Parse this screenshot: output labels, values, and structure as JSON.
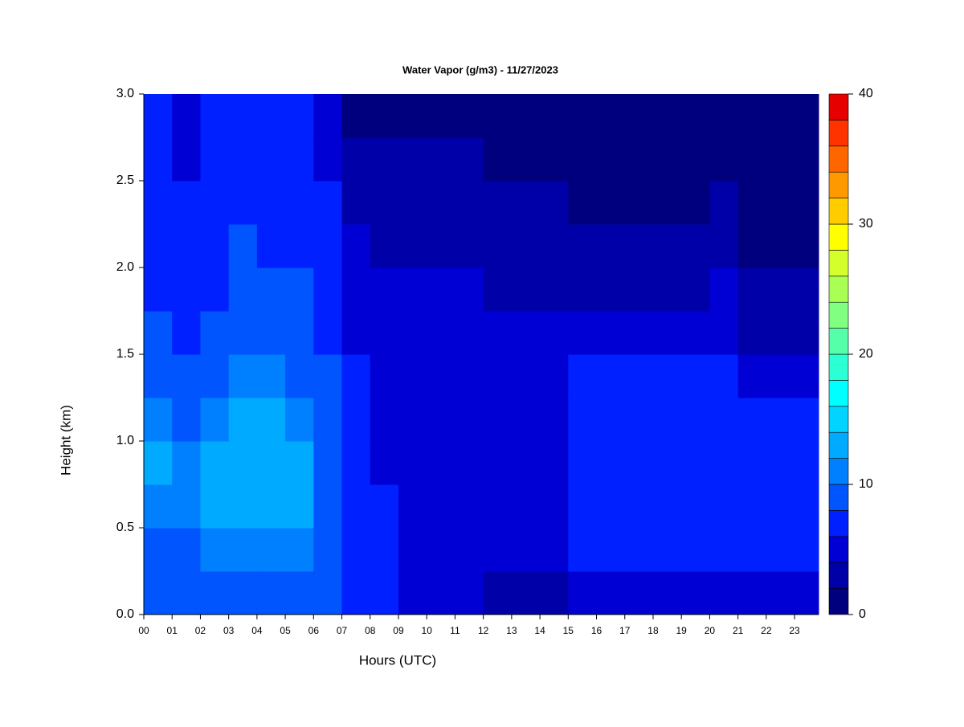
{
  "chart_data": {
    "type": "heatmap",
    "title": "Water Vapor (g/m3) - 11/27/2023",
    "xlabel": "Hours (UTC)",
    "ylabel": "Height (km)",
    "xlim": [
      0,
      23.85
    ],
    "ylim": [
      0,
      3
    ],
    "xticks": [
      {
        "value": 0,
        "label": "00"
      },
      {
        "value": 1,
        "label": "01"
      },
      {
        "value": 2,
        "label": "02"
      },
      {
        "value": 3,
        "label": "03"
      },
      {
        "value": 4,
        "label": "04"
      },
      {
        "value": 5,
        "label": "05"
      },
      {
        "value": 6,
        "label": "06"
      },
      {
        "value": 7,
        "label": "07"
      },
      {
        "value": 8,
        "label": "08"
      },
      {
        "value": 9,
        "label": "09"
      },
      10,
      11,
      12,
      13,
      14,
      15,
      16,
      17,
      18,
      19,
      20,
      21,
      22,
      23
    ],
    "yticks": [
      {
        "value": 0,
        "label": "0.0"
      },
      0.5,
      {
        "value": 1,
        "label": "1.0"
      },
      1.5,
      {
        "value": 2,
        "label": "2.0"
      },
      2.5,
      {
        "value": 3,
        "label": "3.0"
      }
    ],
    "x": [
      0,
      1,
      2,
      3,
      4,
      5,
      6,
      7,
      8,
      9,
      10,
      11,
      12,
      13,
      14,
      15,
      16,
      17,
      18,
      19,
      20,
      21,
      22,
      23
    ],
    "y": [
      0,
      0.25,
      0.5,
      0.75,
      1,
      1.25,
      1.5,
      1.75,
      2,
      2.25,
      2.5,
      2.75
    ],
    "z": [
      [
        9,
        9,
        11,
        12,
        10,
        9,
        8,
        7,
        7,
        6,
        6,
        6
      ],
      [
        9,
        9,
        10,
        10,
        9,
        8,
        7,
        7,
        6,
        6,
        5,
        5
      ],
      [
        9,
        10,
        12,
        12,
        11,
        9,
        8,
        7,
        7,
        6,
        6,
        6
      ],
      [
        9,
        11,
        13,
        13,
        12,
        10,
        9,
        8,
        8,
        7,
        7,
        6
      ],
      [
        9,
        11,
        13,
        13,
        12,
        10,
        9,
        8,
        7,
        7,
        6,
        6
      ],
      [
        9,
        10,
        12,
        12,
        11,
        9,
        8,
        8,
        7,
        7,
        6,
        6
      ],
      [
        8,
        8,
        9,
        9,
        8,
        8,
        7,
        7,
        6,
        6,
        5,
        5
      ],
      [
        7,
        6,
        6,
        6,
        6,
        6,
        5,
        5,
        4,
        3,
        3,
        1
      ],
      [
        7,
        6,
        6,
        5,
        5,
        5,
        5,
        4,
        3,
        3,
        3,
        1
      ],
      [
        5,
        5,
        5,
        5,
        5,
        5,
        5,
        4,
        3,
        3,
        3,
        1
      ],
      [
        5,
        5,
        5,
        5,
        5,
        5,
        5,
        4,
        3,
        3,
        3,
        1
      ],
      [
        5,
        5,
        5,
        5,
        5,
        5,
        5,
        4,
        3,
        3,
        3,
        1
      ],
      [
        3,
        5,
        5,
        5,
        5,
        5,
        4,
        3,
        3,
        3,
        1,
        1
      ],
      [
        3,
        5,
        5,
        5,
        5,
        5,
        4,
        3,
        3,
        3,
        1,
        1
      ],
      [
        3,
        5,
        5,
        5,
        5,
        5,
        4,
        3,
        3,
        3,
        1,
        1
      ],
      [
        4,
        6,
        7,
        7,
        7,
        6,
        5,
        3,
        3,
        1,
        1,
        1
      ],
      [
        5,
        6,
        7,
        7,
        7,
        6,
        5,
        3,
        3,
        1,
        1,
        1
      ],
      [
        5,
        6,
        7,
        7,
        7,
        6,
        5,
        3,
        3,
        1,
        1,
        1
      ],
      [
        5,
        6,
        7,
        7,
        7,
        6,
        5,
        3,
        3,
        1,
        1,
        1
      ],
      [
        5,
        6,
        7,
        7,
        7,
        6,
        5,
        3,
        3,
        1,
        1,
        1
      ],
      [
        5,
        6,
        7,
        7,
        7,
        6,
        5,
        4,
        3,
        3,
        1,
        1
      ],
      [
        5,
        6,
        7,
        6,
        6,
        5,
        3,
        3,
        1,
        1,
        1,
        1
      ],
      [
        5,
        6,
        7,
        6,
        6,
        5,
        3,
        3,
        1,
        1,
        1,
        1
      ],
      [
        5,
        6,
        7,
        6,
        6,
        5,
        3,
        3,
        1,
        1,
        1,
        1
      ]
    ],
    "colorbar": {
      "levels": [
        0,
        2,
        4,
        6,
        8,
        10,
        12,
        14,
        16,
        18,
        20,
        22,
        24,
        26,
        28,
        30,
        32,
        34,
        36,
        38,
        40
      ],
      "colors": [
        "#00007f",
        "#0000a8",
        "#0000d4",
        "#0020ff",
        "#0055ff",
        "#0080ff",
        "#00aaff",
        "#00d4ff",
        "#00ffff",
        "#2bffd4",
        "#55ffaa",
        "#80ff80",
        "#aaff55",
        "#d4ff2b",
        "#ffff00",
        "#ffcc00",
        "#ff9900",
        "#ff6600",
        "#ff3300",
        "#e60000"
      ],
      "ticks": [
        0,
        10,
        20,
        30,
        40
      ]
    }
  }
}
